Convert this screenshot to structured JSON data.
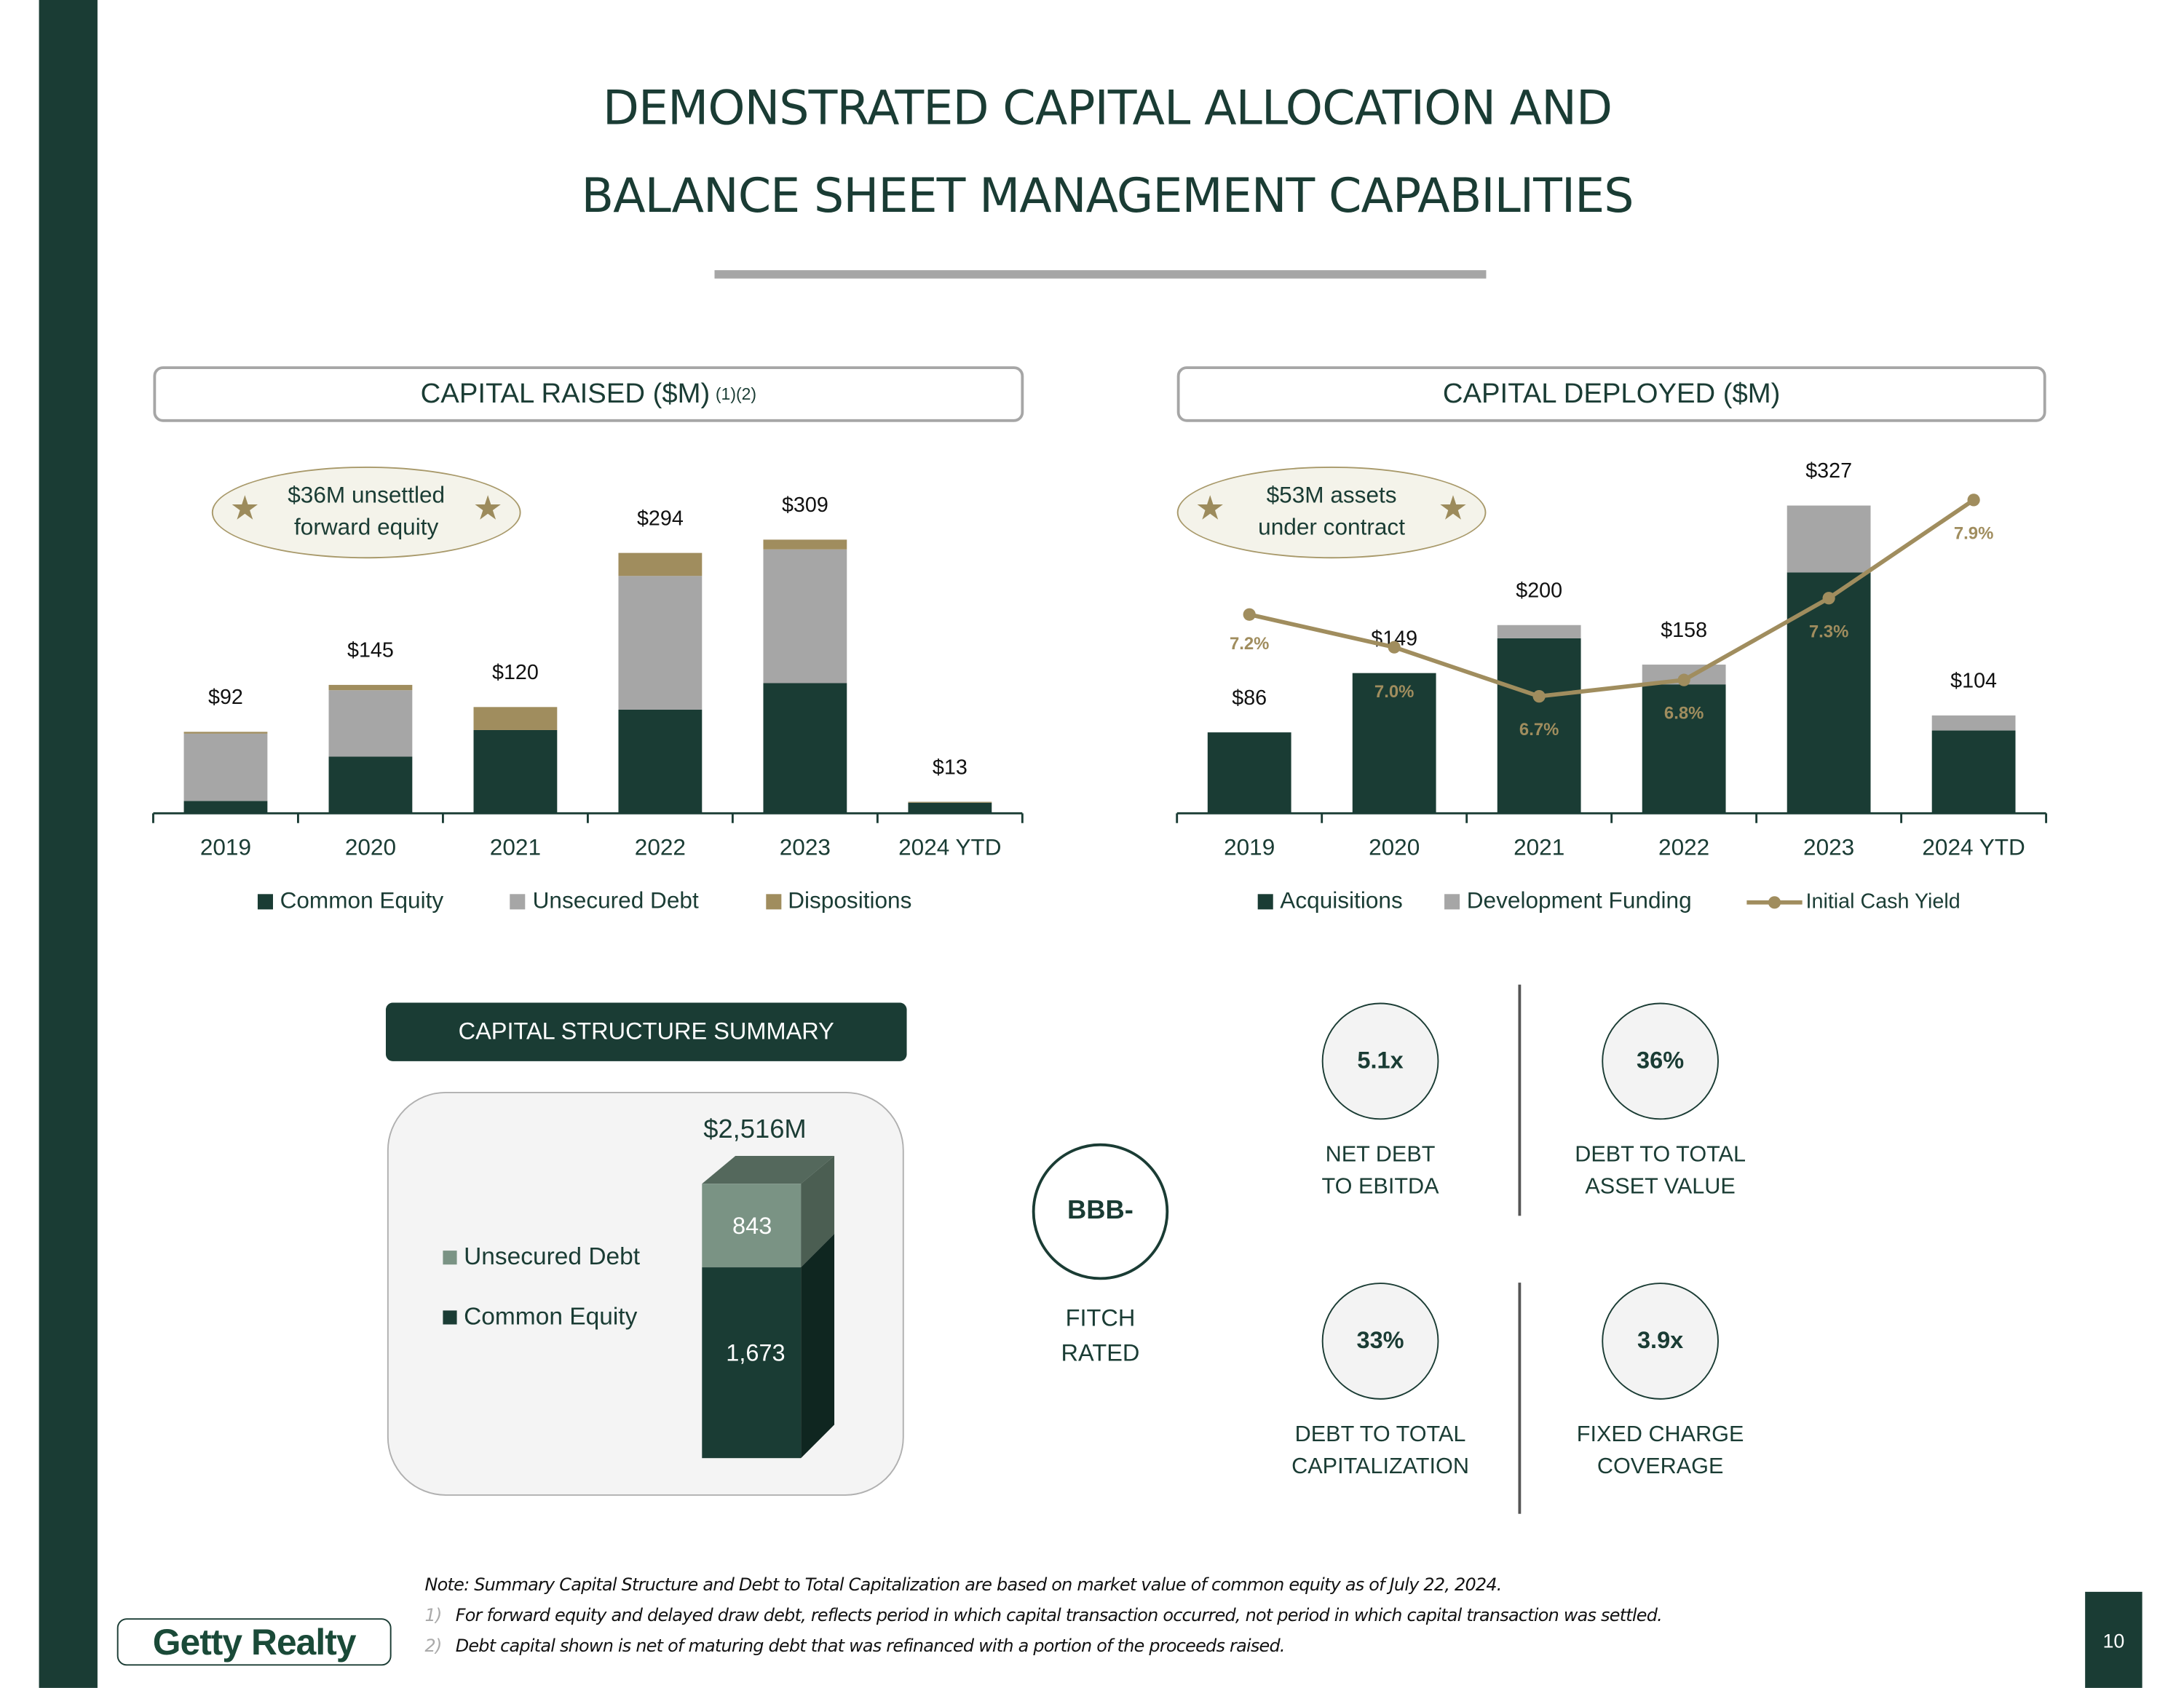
{
  "title": {
    "line1": "DEMONSTRATED CAPITAL ALLOCATION AND",
    "line2": "BALANCE SHEET MANAGEMENT CAPABILITIES"
  },
  "chart_data": [
    {
      "type": "bar",
      "stacked": true,
      "title": "CAPITAL RAISED ($M)",
      "title_sup": "(1)(2)",
      "categories": [
        "2019",
        "2020",
        "2021",
        "2022",
        "2023",
        "2024 YTD"
      ],
      "series": [
        {
          "name": "Common Equity",
          "color": "#1a3c34",
          "values": [
            14,
            64,
            94,
            117,
            147,
            12
          ]
        },
        {
          "name": "Unsecured Debt",
          "color": "#a6a6a6",
          "values": [
            76,
            75,
            0,
            151,
            151,
            0
          ]
        },
        {
          "name": "Dispositions",
          "color": "#a08d5e",
          "values": [
            2,
            6,
            26,
            26,
            11,
            1
          ]
        }
      ],
      "totals": [
        "$92",
        "$145",
        "$120",
        "$294",
        "$309",
        "$13"
      ],
      "callout": {
        "line1": "$36M unsettled",
        "line2": "forward equity"
      },
      "ylim": [
        0,
        309
      ],
      "legend": "bottom"
    },
    {
      "type": "bar",
      "stacked": true,
      "title": "CAPITAL DEPLOYED ($M)",
      "categories": [
        "2019",
        "2020",
        "2021",
        "2022",
        "2023",
        "2024 YTD"
      ],
      "series": [
        {
          "name": "Acquisitions",
          "color": "#1a3c34",
          "values": [
            86,
            149,
            186,
            137,
            256,
            88
          ]
        },
        {
          "name": "Development Funding",
          "color": "#a6a6a6",
          "values": [
            0,
            0,
            14,
            21,
            71,
            16
          ]
        }
      ],
      "line_series": {
        "name": "Initial Cash Yield",
        "color": "#a08d5e",
        "values": [
          7.2,
          7.0,
          6.7,
          6.8,
          7.3,
          7.9
        ],
        "labels": [
          "7.2%",
          "7.0%",
          "6.7%",
          "6.8%",
          "7.3%",
          "7.9%"
        ]
      },
      "totals": [
        "$86",
        "$149",
        "$200",
        "$158",
        "$327",
        "$104"
      ],
      "callout": {
        "line1": "$53M assets",
        "line2": "under contract"
      },
      "ylim": [
        0,
        327
      ],
      "legend": "bottom"
    }
  ],
  "capital_structure": {
    "header": "CAPITAL STRUCTURE SUMMARY",
    "total": "$2,516M",
    "debt_label": "Unsecured Debt",
    "equity_label": "Common Equity",
    "debt_value": "843",
    "equity_value": "1,673",
    "debt_color": "#7a9384",
    "equity_color": "#1a3c34"
  },
  "rating": {
    "value": "BBB-",
    "line1": "FITCH",
    "line2": "RATED"
  },
  "kpis": [
    {
      "value": "5.1x",
      "line1": "NET DEBT",
      "line2": "TO EBITDA"
    },
    {
      "value": "36%",
      "line1": "DEBT TO TOTAL",
      "line2": "ASSET VALUE"
    },
    {
      "value": "33%",
      "line1": "DEBT TO TOTAL",
      "line2": "CAPITALIZATION"
    },
    {
      "value": "3.9x",
      "line1": "FIXED CHARGE",
      "line2": "COVERAGE"
    }
  ],
  "notes": {
    "note": "Note: Summary Capital Structure and Debt to Total Capitalization are based on market value of common equity as of July 22, 2024.",
    "items": [
      {
        "num": "1)",
        "text": "For forward equity and delayed draw debt, reflects period in which capital transaction occurred, not period in which capital transaction was settled."
      },
      {
        "num": "2)",
        "text": "Debt capital shown is net of maturing debt that was refinanced with a portion of the proceeds raised."
      }
    ]
  },
  "logo": "Getty Realty",
  "page_number": "10"
}
